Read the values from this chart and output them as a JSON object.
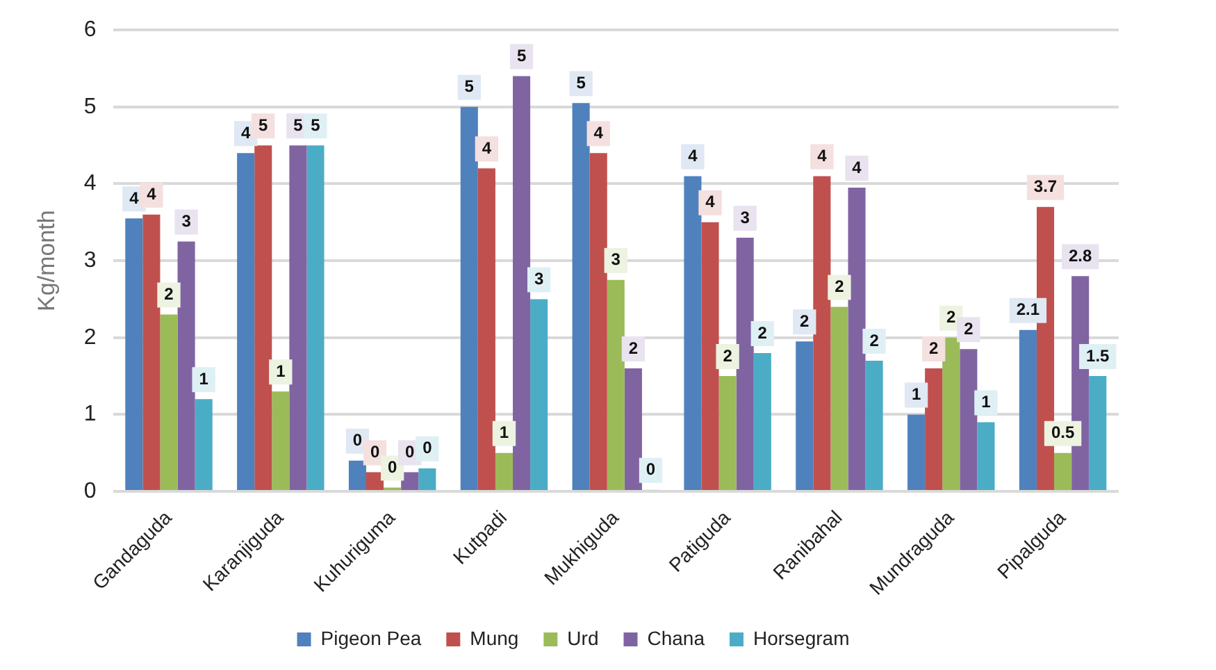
{
  "chart_data": {
    "type": "bar",
    "ylabel": "Kg/month",
    "categories": [
      "Gandaguda",
      "Karanjiguda",
      "Kuhuriguma",
      "Kutpadi",
      "Mukhiguda",
      "Patiguda",
      "Ranibahal",
      "Mundraguda",
      "Pipalguda"
    ],
    "series": [
      {
        "name": "Pigeon Pea",
        "color": "#4f81bd",
        "values": [
          3.55,
          4.4,
          0.4,
          5.0,
          5.05,
          4.1,
          1.95,
          1.0,
          2.1
        ],
        "value_labels": [
          "4",
          "4",
          "0",
          "5",
          "5",
          "4",
          "2",
          "1",
          "2.1"
        ]
      },
      {
        "name": "Mung",
        "color": "#c0504d",
        "values": [
          3.6,
          4.5,
          0.25,
          4.2,
          4.4,
          3.5,
          4.1,
          1.6,
          3.7
        ],
        "value_labels": [
          "4",
          "5",
          "0",
          "4",
          "4",
          "4",
          "4",
          "2",
          "3.7"
        ]
      },
      {
        "name": "Urd",
        "color": "#9bbb59",
        "values": [
          2.3,
          1.3,
          0.05,
          0.5,
          2.75,
          1.5,
          2.4,
          2.0,
          0.5
        ],
        "value_labels": [
          "2",
          "1",
          "0",
          "1",
          "3",
          "2",
          "2",
          "2",
          "0.5"
        ]
      },
      {
        "name": "Chana",
        "color": "#8064a2",
        "values": [
          3.25,
          4.5,
          0.25,
          5.4,
          1.6,
          3.3,
          3.95,
          1.85,
          2.8
        ],
        "value_labels": [
          "3",
          "5",
          "0",
          "5",
          "2",
          "3",
          "4",
          "2",
          "2.8"
        ]
      },
      {
        "name": "Horsegram",
        "color": "#4bacc6",
        "values": [
          1.2,
          4.5,
          0.3,
          2.5,
          0.02,
          1.8,
          1.7,
          0.9,
          1.5
        ],
        "value_labels": [
          "1",
          "5",
          "0",
          "3",
          "0",
          "2",
          "2",
          "1",
          "1.5"
        ]
      }
    ],
    "ylim": [
      0,
      6
    ],
    "yticks": [
      0,
      1,
      2,
      3,
      4,
      5,
      6
    ],
    "grid": "y",
    "legend": "bottom"
  }
}
